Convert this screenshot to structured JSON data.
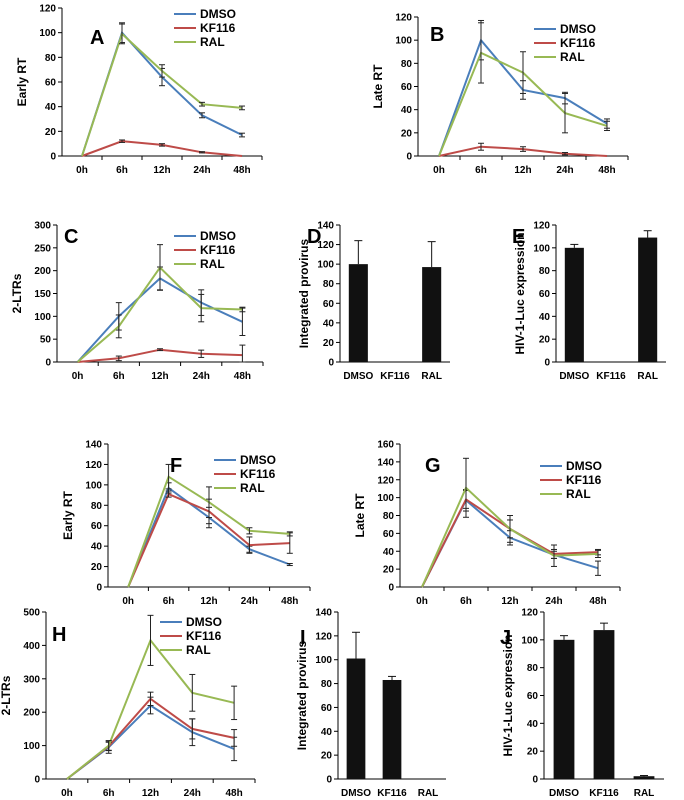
{
  "colors": {
    "DMSO": "#4a7ebb",
    "KF116": "#be4b48",
    "RAL": "#98b954",
    "bar": "#111111",
    "axis": "#000000"
  },
  "chart_data": [
    {
      "letter": "A",
      "type": "line",
      "ylabel": "Early RT",
      "x": [
        "0h",
        "6h",
        "12h",
        "24h",
        "48h"
      ],
      "ylim": [
        0,
        120
      ],
      "yticks": [
        0,
        20,
        40,
        60,
        80,
        100,
        120
      ],
      "legend": "top-right",
      "series": [
        {
          "name": "DMSO",
          "values": [
            0,
            100,
            64,
            33,
            17
          ],
          "err": [
            0,
            8,
            7,
            2,
            1.5
          ]
        },
        {
          "name": "KF116",
          "values": [
            0,
            12,
            9,
            3,
            0
          ],
          "err": [
            0,
            1,
            1,
            0.5,
            0
          ]
        },
        {
          "name": "RAL",
          "values": [
            0,
            99,
            69,
            42,
            39
          ],
          "err": [
            0,
            8,
            5,
            1.5,
            1.5
          ]
        }
      ]
    },
    {
      "letter": "B",
      "type": "line",
      "ylabel": "Late RT",
      "x": [
        "0h",
        "6h",
        "12h",
        "24h",
        "48h"
      ],
      "ylim": [
        0,
        120
      ],
      "yticks": [
        0,
        20,
        40,
        60,
        80,
        100,
        120
      ],
      "legend": "top-right",
      "series": [
        {
          "name": "DMSO",
          "values": [
            0,
            100,
            57,
            50,
            28
          ],
          "err": [
            0,
            17,
            8,
            5,
            4
          ]
        },
        {
          "name": "KF116",
          "values": [
            0,
            8,
            6,
            2,
            0
          ],
          "err": [
            0,
            3,
            2,
            1,
            0
          ]
        },
        {
          "name": "RAL",
          "values": [
            0,
            89,
            72,
            37,
            26
          ],
          "err": [
            0,
            26,
            18,
            17,
            4
          ]
        }
      ]
    },
    {
      "letter": "C",
      "type": "line",
      "ylabel": "2-LTRs",
      "x": [
        "0h",
        "6h",
        "12h",
        "24h",
        "48h"
      ],
      "ylim": [
        0,
        300
      ],
      "yticks": [
        0,
        50,
        100,
        150,
        200,
        250,
        300
      ],
      "legend": "top-right",
      "series": [
        {
          "name": "DMSO",
          "values": [
            0,
            100,
            183,
            130,
            88
          ],
          "err": [
            0,
            30,
            25,
            28,
            30
          ]
        },
        {
          "name": "KF116",
          "values": [
            0,
            8,
            27,
            18,
            15
          ],
          "err": [
            0,
            5,
            2,
            8,
            22
          ]
        },
        {
          "name": "RAL",
          "values": [
            0,
            78,
            207,
            118,
            115
          ],
          "err": [
            0,
            25,
            50,
            30,
            5
          ]
        }
      ]
    },
    {
      "letter": "D",
      "type": "bar",
      "ylabel": "Integrated provirus",
      "categories": [
        "DMSO",
        "KF116",
        "RAL"
      ],
      "values": [
        100,
        0,
        97
      ],
      "err": [
        24,
        0,
        26
      ],
      "ylim": [
        0,
        140
      ],
      "yticks": [
        0,
        20,
        40,
        60,
        80,
        100,
        120,
        140
      ]
    },
    {
      "letter": "E",
      "type": "bar",
      "ylabel": "HIV-1-Luc expression",
      "categories": [
        "DMSO",
        "KF116",
        "RAL"
      ],
      "values": [
        100,
        0,
        109
      ],
      "err": [
        3,
        0,
        6
      ],
      "ylim": [
        0,
        120
      ],
      "yticks": [
        0,
        20,
        40,
        60,
        80,
        100,
        120
      ]
    },
    {
      "letter": "F",
      "type": "line",
      "ylabel": "Early RT",
      "x": [
        "0h",
        "6h",
        "12h",
        "24h",
        "48h"
      ],
      "ylim": [
        0,
        140
      ],
      "yticks": [
        0,
        20,
        40,
        60,
        80,
        100,
        120,
        140
      ],
      "legend": "top-right",
      "series": [
        {
          "name": "DMSO",
          "values": [
            0,
            97,
            68,
            37,
            22
          ],
          "err": [
            0,
            5,
            10,
            3,
            1
          ]
        },
        {
          "name": "KF116",
          "values": [
            0,
            91,
            74,
            41,
            43
          ],
          "err": [
            0,
            3,
            12,
            8,
            10
          ]
        },
        {
          "name": "RAL",
          "values": [
            0,
            108,
            83,
            55,
            52
          ],
          "err": [
            0,
            12,
            15,
            3,
            2
          ]
        }
      ]
    },
    {
      "letter": "G",
      "type": "line",
      "ylabel": "Late RT",
      "x": [
        "0h",
        "6h",
        "12h",
        "24h",
        "48h"
      ],
      "ylim": [
        0,
        160
      ],
      "yticks": [
        0,
        20,
        40,
        60,
        80,
        100,
        120,
        140,
        160
      ],
      "legend": "top-right",
      "series": [
        {
          "name": "DMSO",
          "values": [
            0,
            97,
            55,
            36,
            21
          ],
          "err": [
            0,
            12,
            8,
            4,
            8
          ]
        },
        {
          "name": "KF116",
          "values": [
            0,
            98,
            65,
            37,
            39
          ],
          "err": [
            0,
            10,
            10,
            5,
            3
          ]
        },
        {
          "name": "RAL",
          "values": [
            0,
            111,
            65,
            35,
            37
          ],
          "err": [
            0,
            33,
            15,
            12,
            4
          ]
        }
      ]
    },
    {
      "letter": "H",
      "type": "line",
      "ylabel": "2-LTRs",
      "x": [
        "0h",
        "6h",
        "12h",
        "24h",
        "48h"
      ],
      "ylim": [
        0,
        500
      ],
      "yticks": [
        0,
        100,
        200,
        300,
        400,
        500
      ],
      "legend": "top-right",
      "series": [
        {
          "name": "DMSO",
          "values": [
            0,
            95,
            220,
            140,
            90
          ],
          "err": [
            0,
            18,
            25,
            40,
            35
          ]
        },
        {
          "name": "KF116",
          "values": [
            0,
            98,
            240,
            150,
            123
          ],
          "err": [
            0,
            12,
            20,
            30,
            25
          ]
        },
        {
          "name": "RAL",
          "values": [
            0,
            100,
            415,
            258,
            228
          ],
          "err": [
            0,
            15,
            75,
            55,
            50
          ]
        }
      ]
    },
    {
      "letter": "I",
      "type": "bar",
      "ylabel": "Integrated provirus",
      "categories": [
        "DMSO",
        "KF116",
        "RAL"
      ],
      "values": [
        101,
        83,
        0
      ],
      "err": [
        22,
        3,
        0
      ],
      "ylim": [
        0,
        140
      ],
      "yticks": [
        0,
        20,
        40,
        60,
        80,
        100,
        120,
        140
      ]
    },
    {
      "letter": "J",
      "type": "bar",
      "ylabel": "HIV-1-Luc expression",
      "categories": [
        "DMSO",
        "KF116",
        "RAL"
      ],
      "values": [
        100,
        107,
        2
      ],
      "err": [
        3,
        5,
        0.5
      ],
      "ylim": [
        0,
        120
      ],
      "yticks": [
        0,
        20,
        40,
        60,
        80,
        100,
        120
      ]
    }
  ]
}
